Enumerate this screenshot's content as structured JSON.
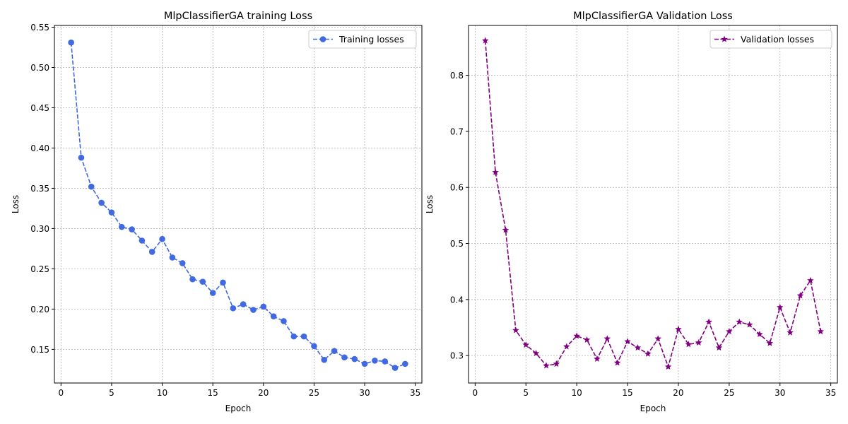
{
  "chart_data": [
    {
      "type": "line",
      "title": "MlpClassifierGA training Loss",
      "xlabel": "Epoch",
      "ylabel": "Loss",
      "xlim": [
        -0.65,
        35.65
      ],
      "ylim": [
        0.1082,
        0.5522
      ],
      "xticks": [
        0,
        5,
        10,
        15,
        20,
        25,
        30,
        35
      ],
      "yticks": [
        0.15,
        0.2,
        0.25,
        0.3,
        0.35,
        0.4,
        0.45,
        0.5,
        0.55
      ],
      "ytick_labels": [
        "0.15",
        "0.20",
        "0.25",
        "0.30",
        "0.35",
        "0.40",
        "0.45",
        "0.50",
        "0.55"
      ],
      "grid": true,
      "legend_position": "top-right",
      "series": [
        {
          "name": "Training losses",
          "color": "#4169e1",
          "marker": "circle",
          "linestyle": "dashed",
          "x": [
            1,
            2,
            3,
            4,
            5,
            6,
            7,
            8,
            9,
            10,
            11,
            12,
            13,
            14,
            15,
            16,
            17,
            18,
            19,
            20,
            21,
            22,
            23,
            24,
            25,
            26,
            27,
            28,
            29,
            30,
            31,
            32,
            33,
            34
          ],
          "values": [
            0.531,
            0.388,
            0.352,
            0.332,
            0.32,
            0.302,
            0.299,
            0.285,
            0.271,
            0.287,
            0.264,
            0.257,
            0.237,
            0.234,
            0.22,
            0.233,
            0.201,
            0.206,
            0.199,
            0.203,
            0.191,
            0.185,
            0.166,
            0.166,
            0.154,
            0.137,
            0.148,
            0.14,
            0.138,
            0.132,
            0.136,
            0.135,
            0.127,
            0.132
          ]
        }
      ]
    },
    {
      "type": "line",
      "title": "MlpClassifierGA Validation Loss",
      "xlabel": "Epoch",
      "ylabel": "Loss",
      "xlim": [
        -0.65,
        35.65
      ],
      "ylim": [
        0.251,
        0.889
      ],
      "xticks": [
        0,
        5,
        10,
        15,
        20,
        25,
        30,
        35
      ],
      "yticks": [
        0.3,
        0.4,
        0.5,
        0.6,
        0.7,
        0.8
      ],
      "ytick_labels": [
        "0.3",
        "0.4",
        "0.5",
        "0.6",
        "0.7",
        "0.8"
      ],
      "grid": true,
      "legend_position": "top-right",
      "series": [
        {
          "name": "Validation losses",
          "color": "#800080",
          "marker": "star",
          "linestyle": "dashed",
          "x": [
            1,
            2,
            3,
            4,
            5,
            6,
            7,
            8,
            9,
            10,
            11,
            12,
            13,
            14,
            15,
            16,
            17,
            18,
            19,
            20,
            21,
            22,
            23,
            24,
            25,
            26,
            27,
            28,
            29,
            30,
            31,
            32,
            33,
            34
          ],
          "values": [
            0.862,
            0.627,
            0.524,
            0.345,
            0.319,
            0.304,
            0.282,
            0.285,
            0.316,
            0.335,
            0.328,
            0.294,
            0.33,
            0.287,
            0.325,
            0.314,
            0.303,
            0.33,
            0.28,
            0.347,
            0.32,
            0.323,
            0.36,
            0.314,
            0.343,
            0.36,
            0.355,
            0.338,
            0.322,
            0.386,
            0.341,
            0.407,
            0.434,
            0.343
          ]
        }
      ]
    }
  ]
}
